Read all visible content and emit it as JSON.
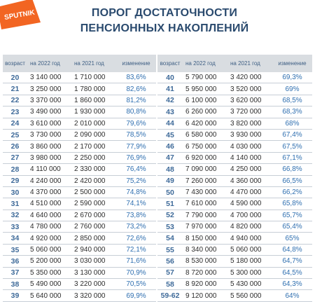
{
  "brand": {
    "logo_text": "SPUTNIK",
    "color": "#f26522"
  },
  "title": {
    "line1": "ПОРОГ ДОСТАТОЧНОСТИ",
    "line2": "ПЕНСИОННЫХ НАКОПЛЕНИЙ"
  },
  "headers": {
    "age": "возраст",
    "y2022": "на 2022 год",
    "y2021": "на 2021 год",
    "change": "изменение"
  },
  "colors": {
    "age": "#3e6a99",
    "change": "#2f6fb0",
    "header_bg": "#d9dde1",
    "title": "#2a4a6e"
  },
  "left": [
    {
      "age": "20",
      "v2022": "3 140 000",
      "v2021": "1 710 000",
      "change": "83,6%"
    },
    {
      "age": "21",
      "v2022": "3 250 000",
      "v2021": "1 780 000",
      "change": "82,6%"
    },
    {
      "age": "22",
      "v2022": "3 370 000",
      "v2021": "1 860 000",
      "change": "81,2%"
    },
    {
      "age": "23",
      "v2022": "3 490 000",
      "v2021": "1 930 000",
      "change": "80,8%"
    },
    {
      "age": "24",
      "v2022": "3 610 000",
      "v2021": "2 010 000",
      "change": "79,6%"
    },
    {
      "age": "25",
      "v2022": "3 730 000",
      "v2021": "2 090 000",
      "change": "78,5%"
    },
    {
      "age": "26",
      "v2022": "3 860 000",
      "v2021": "2 170 000",
      "change": "77,9%"
    },
    {
      "age": "27",
      "v2022": "3 980 000",
      "v2021": "2 250 000",
      "change": "76,9%"
    },
    {
      "age": "28",
      "v2022": "4 110 000",
      "v2021": "2 330 000",
      "change": "76,4%"
    },
    {
      "age": "29",
      "v2022": "4 240 000",
      "v2021": "2 420 000",
      "change": "75,2%"
    },
    {
      "age": "30",
      "v2022": "4 370 000",
      "v2021": "2 500 000",
      "change": "74,8%"
    },
    {
      "age": "31",
      "v2022": "4 510 000",
      "v2021": "2 590 000",
      "change": "74,1%"
    },
    {
      "age": "32",
      "v2022": "4 640 000",
      "v2021": "2 670 000",
      "change": "73,8%"
    },
    {
      "age": "33",
      "v2022": "4 780 000",
      "v2021": "2 760 000",
      "change": "73,2%"
    },
    {
      "age": "34",
      "v2022": "4 920 000",
      "v2021": "2 850 000",
      "change": "72,6%"
    },
    {
      "age": "35",
      "v2022": "5 060 000",
      "v2021": "2 940 000",
      "change": "72,1%"
    },
    {
      "age": "36",
      "v2022": "5 200 000",
      "v2021": "3 030 000",
      "change": "71,6%"
    },
    {
      "age": "37",
      "v2022": "5 350 000",
      "v2021": "3 130 000",
      "change": "70,9%"
    },
    {
      "age": "38",
      "v2022": "5 490 000",
      "v2021": "3 220 000",
      "change": "70,5%"
    },
    {
      "age": "39",
      "v2022": "5 640 000",
      "v2021": "3 320 000",
      "change": "69,9%"
    }
  ],
  "right": [
    {
      "age": "40",
      "v2022": "5 790 000",
      "v2021": "3 420 000",
      "change": "69,3%"
    },
    {
      "age": "41",
      "v2022": "5 950 000",
      "v2021": "3 520 000",
      "change": "69%"
    },
    {
      "age": "42",
      "v2022": "6 100 000",
      "v2021": "3 620 000",
      "change": "68,5%"
    },
    {
      "age": "43",
      "v2022": "6 260 000",
      "v2021": "3 720 000",
      "change": "68,3%"
    },
    {
      "age": "44",
      "v2022": "6 420 000",
      "v2021": "3 820 000",
      "change": "68%"
    },
    {
      "age": "45",
      "v2022": "6 580 000",
      "v2021": "3 930 000",
      "change": "67,4%"
    },
    {
      "age": "46",
      "v2022": "6 750 000",
      "v2021": "4 030 000",
      "change": "67,5%"
    },
    {
      "age": "47",
      "v2022": "6 920 000",
      "v2021": "4 140 000",
      "change": "67,1%"
    },
    {
      "age": "48",
      "v2022": "7 090 000",
      "v2021": "4 250 000",
      "change": "66,8%"
    },
    {
      "age": "49",
      "v2022": "7 260 000",
      "v2021": "4 360 000",
      "change": "66,5%"
    },
    {
      "age": "50",
      "v2022": "7 430 000",
      "v2021": "4 470 000",
      "change": "66,2%"
    },
    {
      "age": "51",
      "v2022": "7 610 000",
      "v2021": "4 590 000",
      "change": "65,8%"
    },
    {
      "age": "52",
      "v2022": "7 790 000",
      "v2021": "4 700 000",
      "change": "65,7%"
    },
    {
      "age": "53",
      "v2022": "7 970 000",
      "v2021": "4 820 000",
      "change": "65,4%"
    },
    {
      "age": "54",
      "v2022": "8 150 000",
      "v2021": "4 940 000",
      "change": "65%"
    },
    {
      "age": "55",
      "v2022": "8 340 000",
      "v2021": "5 060 000",
      "change": "64,8%"
    },
    {
      "age": "56",
      "v2022": "8 530 000",
      "v2021": "5 180 000",
      "change": "64,7%"
    },
    {
      "age": "57",
      "v2022": "8 720 000",
      "v2021": "5 300 000",
      "change": "64,5%"
    },
    {
      "age": "58",
      "v2022": "8 920 000",
      "v2021": "5 430 000",
      "change": "64,3%"
    },
    {
      "age": "59-62",
      "v2022": "9 120 000",
      "v2021": "5 560 000",
      "change": "64%"
    }
  ]
}
